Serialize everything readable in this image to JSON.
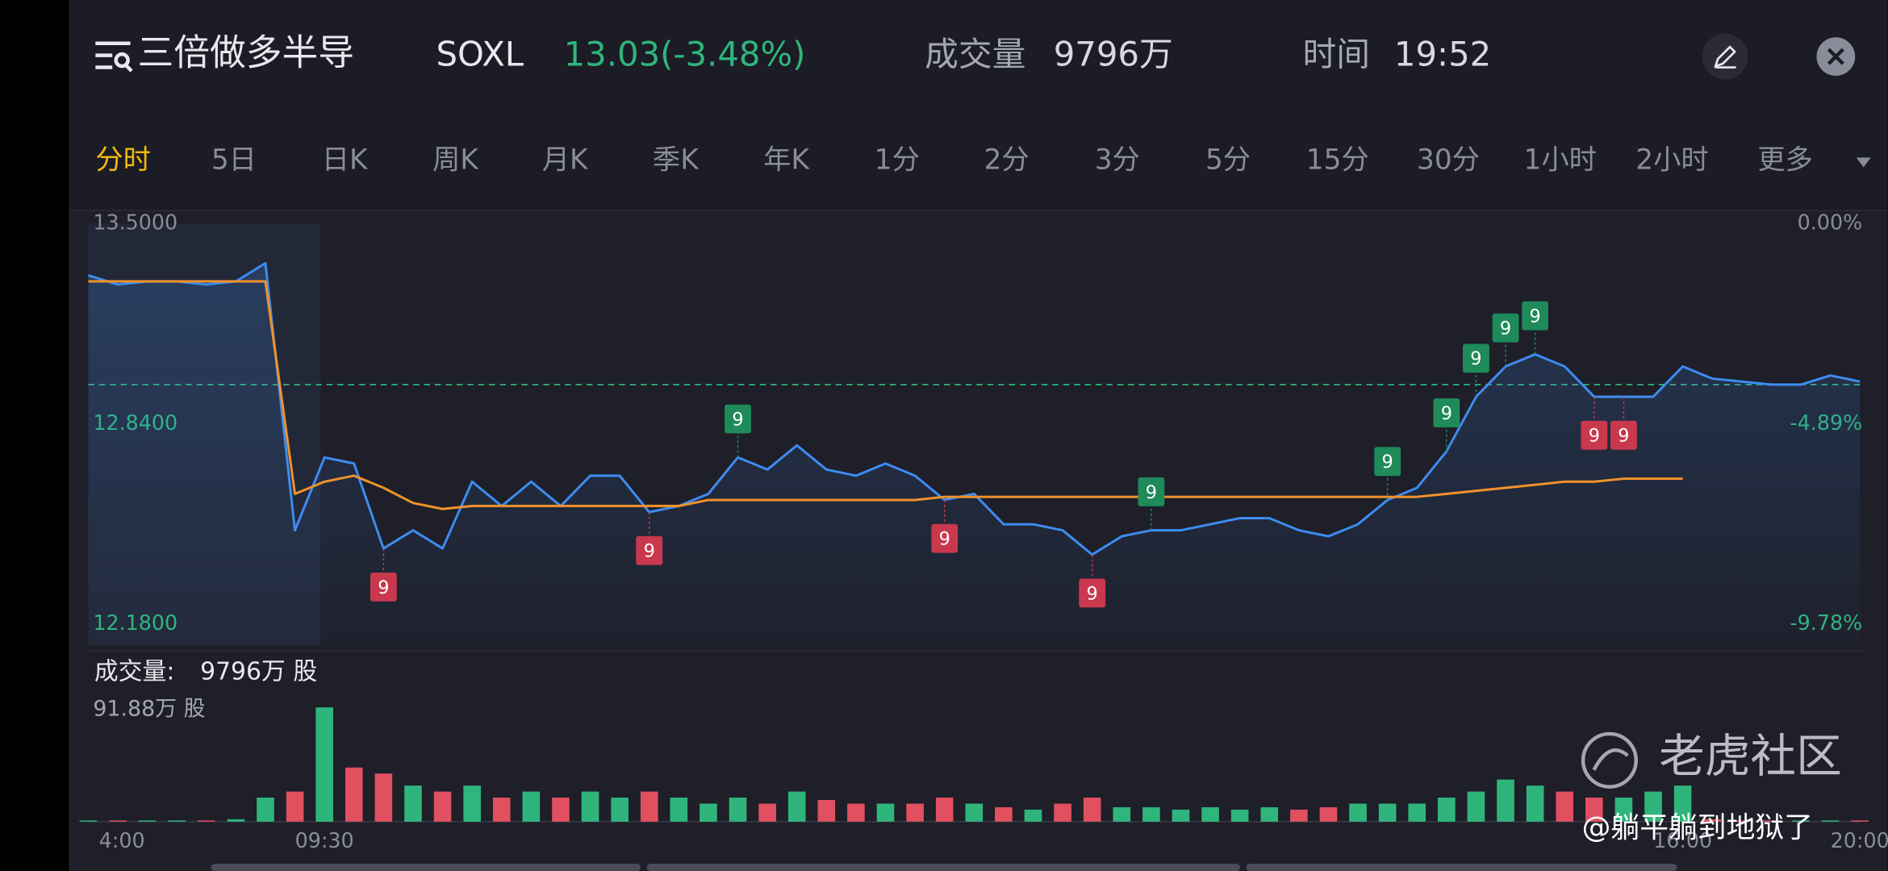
{
  "header": {
    "title": "三倍做多半导",
    "symbol": "SOXL",
    "price": "13.03(-3.48%)",
    "volume_label": "成交量",
    "volume": "9796万",
    "time_label": "时间",
    "time": "19:52"
  },
  "tabs": [
    "分时",
    "5日",
    "日K",
    "周K",
    "月K",
    "季K",
    "年K",
    "1分",
    "2分",
    "3分",
    "5分",
    "15分",
    "30分",
    "1小时",
    "2小时",
    "更多"
  ],
  "chart_data": [
    {
      "type": "line",
      "ylim": [
        12.18,
        13.5
      ],
      "yticks": [
        {
          "value": 13.5,
          "label": "13.5000"
        },
        {
          "value": 12.84,
          "label": "12.8400"
        },
        {
          "value": 12.18,
          "label": "12.1800"
        }
      ],
      "y2lim": [
        -9.78,
        0
      ],
      "y2ticks": [
        {
          "value": 0,
          "label": "0.00%"
        },
        {
          "value": -4.89,
          "label": "-4.89%"
        },
        {
          "value": -9.78,
          "label": "-9.78%"
        }
      ],
      "reference": 12.97,
      "categories": [
        "4:00",
        null,
        null,
        null,
        null,
        null,
        null,
        null,
        "09:30",
        null,
        null,
        null,
        null,
        null,
        null,
        null,
        null,
        null,
        null,
        null,
        null,
        null,
        null,
        null,
        null,
        null,
        null,
        null,
        null,
        null,
        null,
        null,
        null,
        null,
        null,
        null,
        null,
        null,
        null,
        null,
        null,
        null,
        null,
        null,
        null,
        null,
        null,
        null,
        null,
        null,
        null,
        null,
        null,
        null,
        "16:00",
        null,
        null,
        null,
        null,
        null,
        "20:00"
      ],
      "series": [
        {
          "color": "#3d8cf0",
          "values": [
            13.33,
            13.3,
            13.31,
            13.31,
            13.3,
            13.31,
            13.37,
            12.49,
            12.73,
            12.71,
            12.43,
            12.49,
            12.43,
            12.65,
            12.57,
            12.65,
            12.57,
            12.67,
            12.67,
            12.55,
            12.57,
            12.61,
            12.73,
            12.69,
            12.77,
            12.69,
            12.67,
            12.71,
            12.67,
            12.59,
            12.61,
            12.51,
            12.51,
            12.49,
            12.41,
            12.47,
            12.49,
            12.49,
            12.51,
            12.53,
            12.53,
            12.49,
            12.47,
            12.51,
            12.59,
            12.63,
            12.75,
            12.93,
            13.03,
            13.07,
            13.03,
            12.93,
            12.93,
            12.93,
            13.03,
            12.99,
            12.98,
            12.97,
            12.97,
            13.0,
            12.98
          ]
        },
        {
          "color": "#f0922b",
          "values": [
            13.31,
            13.31,
            13.31,
            13.31,
            13.31,
            13.31,
            13.31,
            12.61,
            12.65,
            12.67,
            12.63,
            12.58,
            12.56,
            12.57,
            12.57,
            12.57,
            12.57,
            12.57,
            12.57,
            12.57,
            12.57,
            12.59,
            12.59,
            12.59,
            12.59,
            12.59,
            12.59,
            12.59,
            12.59,
            12.6,
            12.6,
            12.6,
            12.6,
            12.6,
            12.6,
            12.6,
            12.6,
            12.6,
            12.6,
            12.6,
            12.6,
            12.6,
            12.6,
            12.6,
            12.6,
            12.6,
            12.61,
            12.62,
            12.63,
            12.64,
            12.65,
            12.65,
            12.66,
            12.66,
            12.66,
            null,
            null,
            null,
            null,
            null,
            null
          ]
        }
      ],
      "annotations": [
        {
          "text": "9",
          "index": 10,
          "color": "#c9384d"
        },
        {
          "text": "9",
          "index": 19,
          "color": "#c9384d"
        },
        {
          "text": "9",
          "index": 29,
          "color": "#c9384d"
        },
        {
          "text": "9",
          "index": 34,
          "color": "#c9384d"
        },
        {
          "text": "9",
          "index": 51,
          "color": "#c9384d"
        },
        {
          "text": "9",
          "index": 52,
          "color": "#c9384d"
        },
        {
          "text": "9",
          "index": 22,
          "color": "#1f8a5a"
        },
        {
          "text": "9",
          "index": 36,
          "color": "#1f8a5a"
        },
        {
          "text": "9",
          "index": 44,
          "color": "#1f8a5a"
        },
        {
          "text": "9",
          "index": 46,
          "color": "#1f8a5a"
        },
        {
          "text": "9",
          "index": 47,
          "color": "#1f8a5a"
        },
        {
          "text": "9",
          "index": 48,
          "color": "#1f8a5a"
        },
        {
          "text": "9",
          "index": 49,
          "color": "#1f8a5a"
        }
      ]
    },
    {
      "type": "bar",
      "label": "成交量:",
      "total": "9796万 股",
      "max_label": "91.88万 股",
      "ylim": [
        0,
        100
      ],
      "up_color": "#2fb57c",
      "down_color": "#e0505f",
      "values": [
        1,
        1,
        1,
        1,
        1,
        2,
        20,
        25,
        95,
        45,
        40,
        30,
        25,
        30,
        20,
        25,
        20,
        25,
        20,
        25,
        20,
        15,
        20,
        15,
        25,
        18,
        15,
        15,
        15,
        20,
        15,
        12,
        10,
        15,
        20,
        12,
        12,
        10,
        12,
        10,
        12,
        10,
        12,
        15,
        15,
        15,
        20,
        25,
        35,
        30,
        25,
        20,
        20,
        25,
        30,
        2,
        1,
        1,
        1,
        1,
        1
      ]
    }
  ],
  "watermark": {
    "brand": "老虎社区",
    "user": "@躺平躺到地狱了"
  }
}
